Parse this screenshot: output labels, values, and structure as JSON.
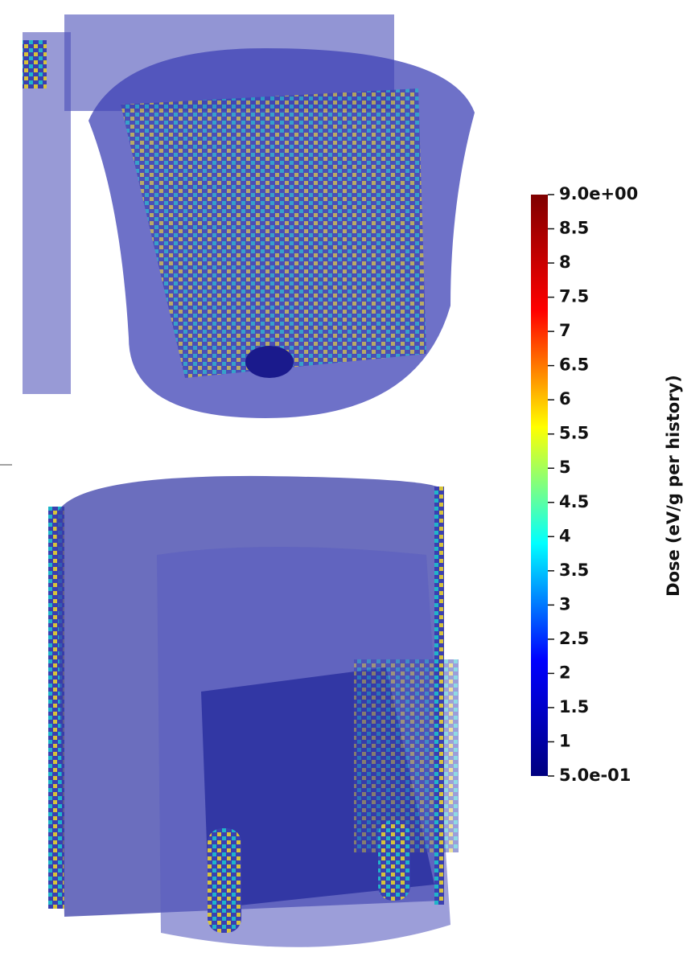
{
  "chart_data": {
    "type": "colorbar",
    "label": "Dose (eV/g per history)",
    "clim": [
      0.5,
      9
    ],
    "colormap": [
      "#00007f",
      "#0000ff",
      "#00ffff",
      "#ffff00",
      "#ff0000",
      "#7f0000"
    ],
    "ticks": [
      {
        "value": 9,
        "label": "9.0e+00"
      },
      8.5,
      8,
      7.5,
      7,
      6.5,
      6,
      5.5,
      5,
      4.5,
      4,
      3.5,
      3,
      2.5,
      2,
      1.5,
      1,
      {
        "value": 0.5,
        "label": "5.0e-01"
      }
    ]
  }
}
